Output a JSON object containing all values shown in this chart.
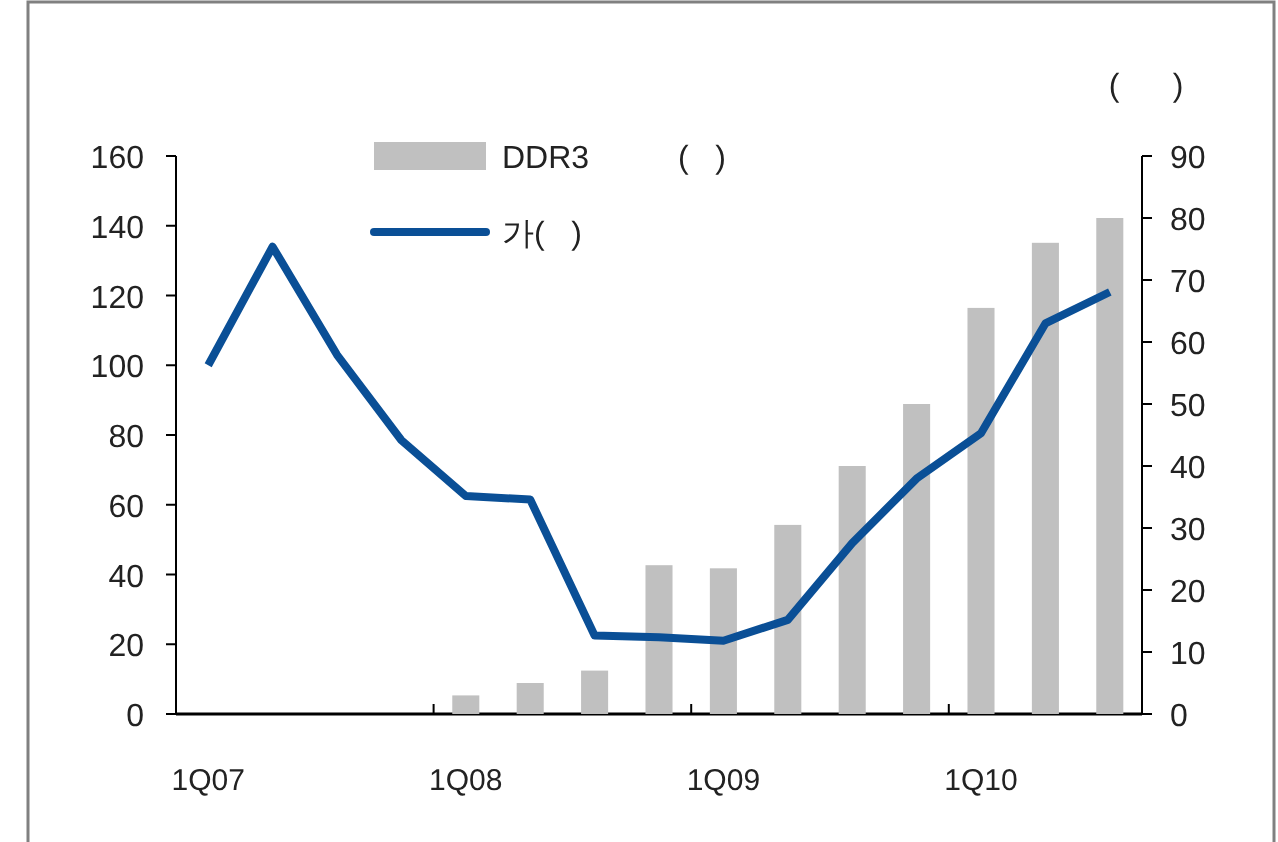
{
  "chart_data": {
    "type": "bar",
    "categories": [
      "1Q07",
      null,
      null,
      null,
      "1Q08",
      null,
      null,
      null,
      "1Q09",
      null,
      null,
      null,
      "1Q10",
      null,
      null
    ],
    "y2label": "(      )",
    "series": [
      {
        "name": "DDR3          (   )",
        "axis": "y2",
        "color": "#c0c0c0",
        "values": [
          null,
          null,
          null,
          null,
          3,
          5,
          7,
          24,
          23.5,
          30.5,
          40,
          50,
          65.5,
          76,
          80
        ]
      },
      {
        "name": "가(   )",
        "type": "line",
        "color": "#0a4f96",
        "values": [
          100,
          134,
          103,
          78.5,
          62.5,
          61.5,
          22.5,
          22,
          21,
          27,
          49,
          67.5,
          80.5,
          112,
          121
        ]
      }
    ],
    "ylim": [
      0,
      160
    ],
    "yticks": [
      0,
      20,
      40,
      60,
      80,
      100,
      120,
      140,
      160
    ],
    "y2lim": [
      0,
      90
    ],
    "y2ticks": [
      0,
      10,
      20,
      30,
      40,
      50,
      60,
      70,
      80,
      90
    ],
    "grid": false,
    "legend": "top"
  }
}
